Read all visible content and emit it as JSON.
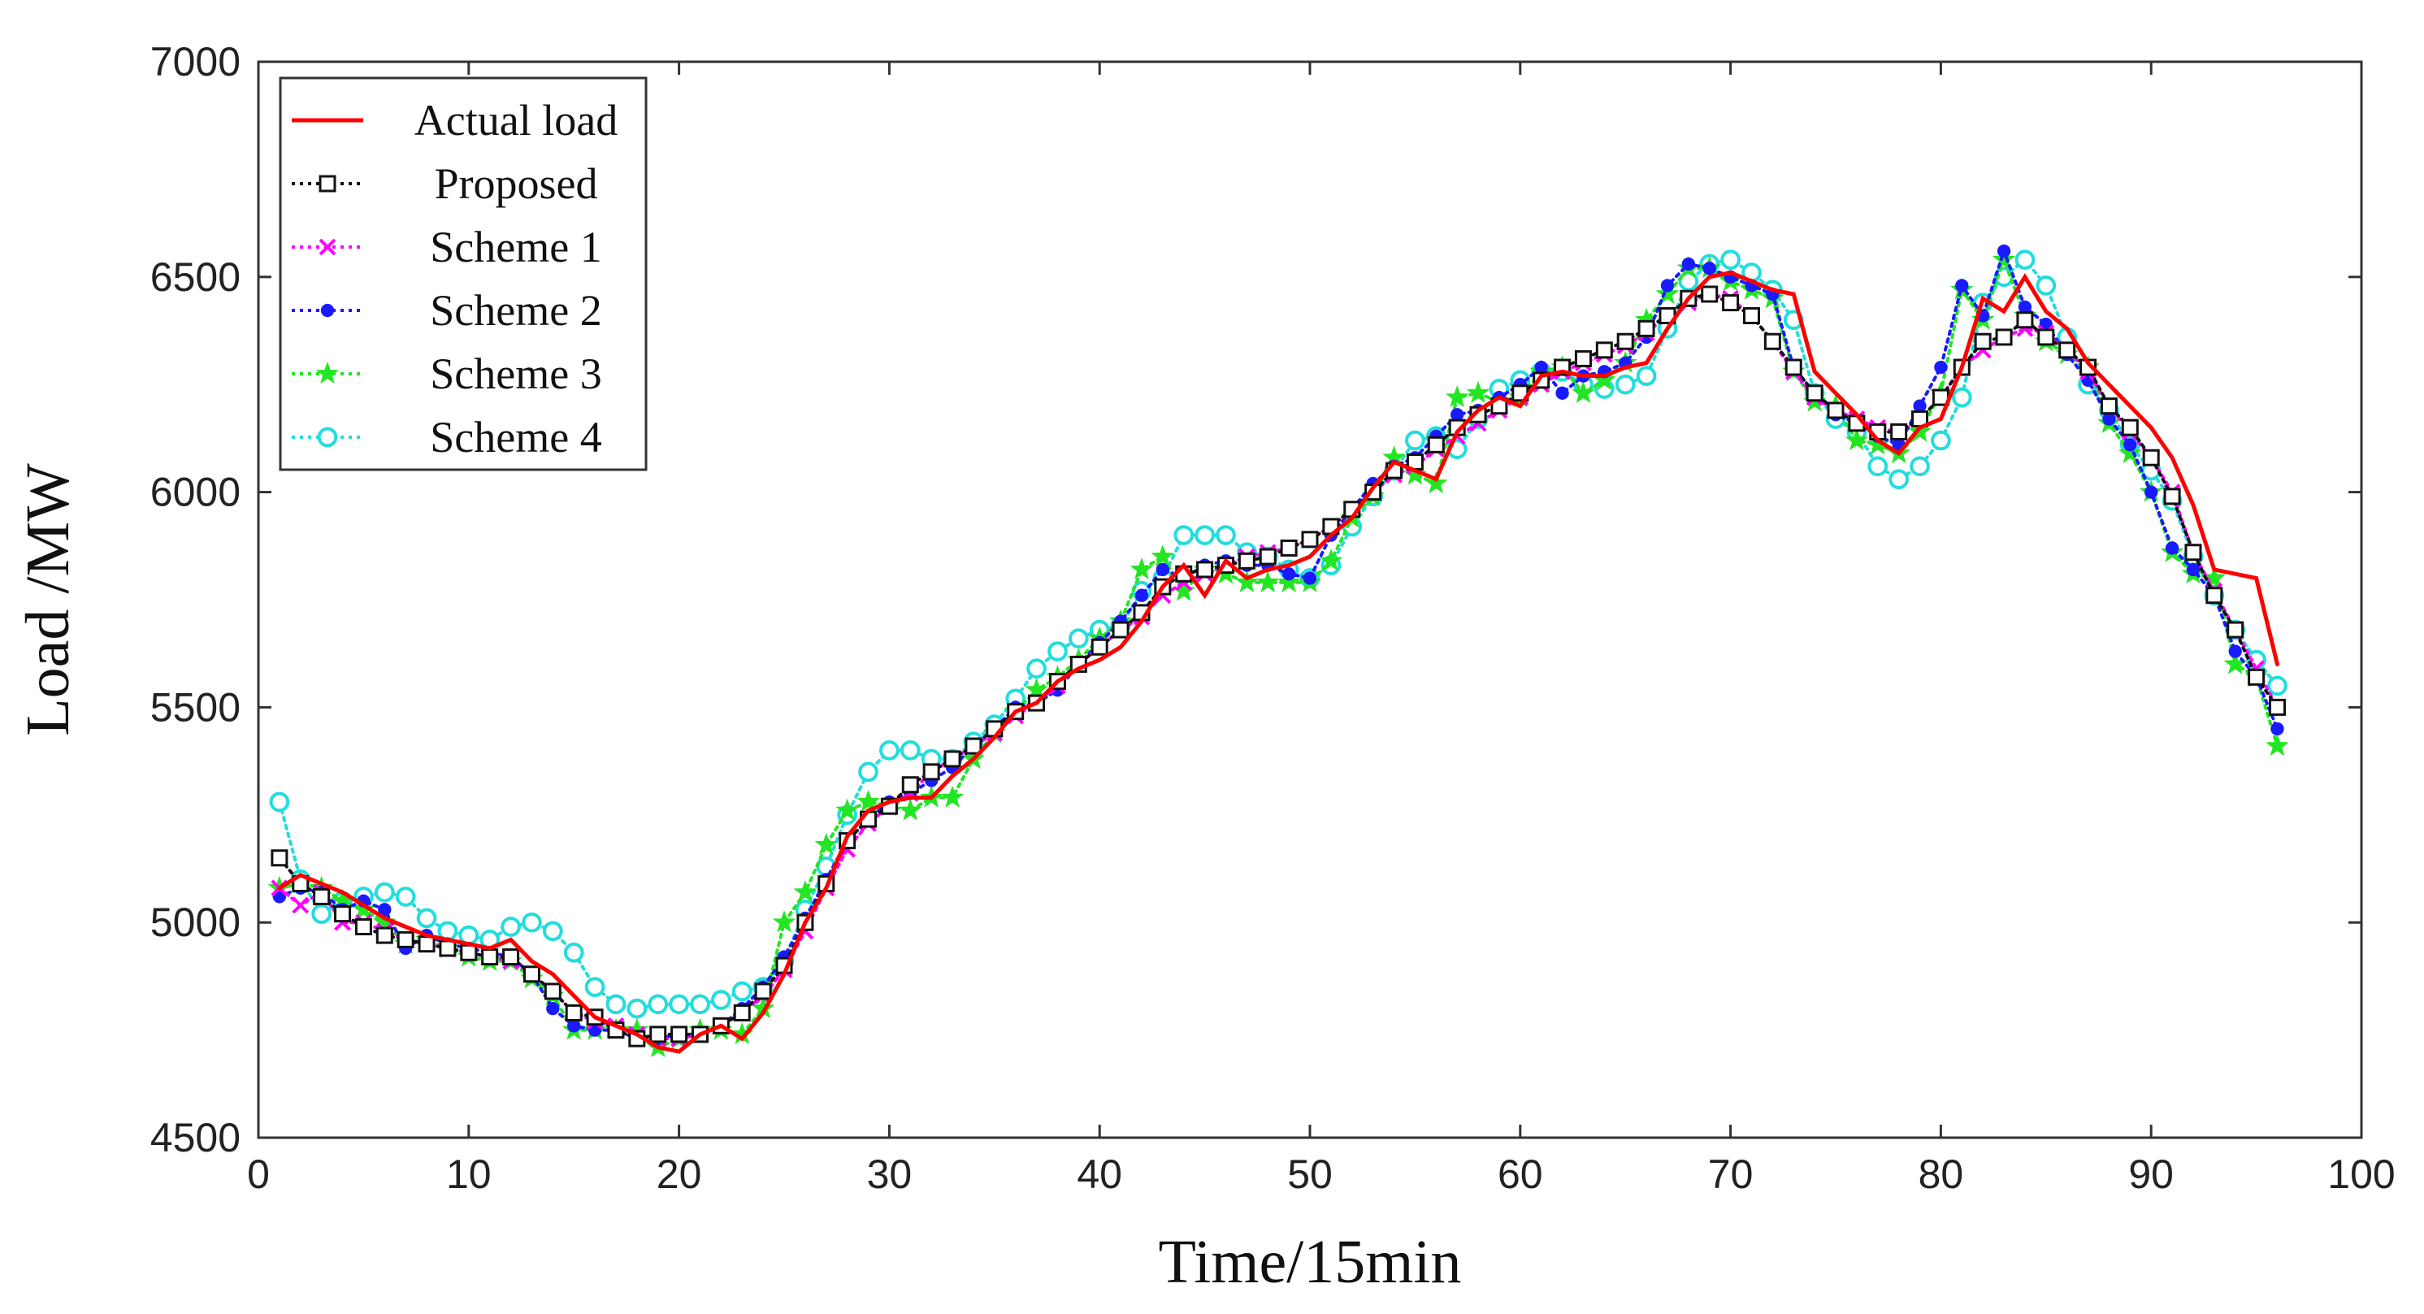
{
  "chart_data": {
    "type": "line",
    "title": "",
    "xlabel": "Time/15min",
    "ylabel": "Load /MW",
    "xlim": [
      0,
      100
    ],
    "ylim": [
      4500,
      7000
    ],
    "xticks": [
      0,
      10,
      20,
      30,
      40,
      50,
      60,
      70,
      80,
      90,
      100
    ],
    "yticks": [
      4500,
      5000,
      5500,
      6000,
      6500,
      7000
    ],
    "legend_position": "top-left",
    "grid": false,
    "x_start": 1,
    "series": [
      {
        "name": "Actual load",
        "color": "#ff0000",
        "style": "solid",
        "marker": "none",
        "values": [
          5080,
          5110,
          5090,
          5070,
          5040,
          5010,
          4990,
          4970,
          4960,
          4950,
          4940,
          4960,
          4910,
          4880,
          4830,
          4780,
          4760,
          4740,
          4710,
          4700,
          4740,
          4760,
          4730,
          4790,
          4880,
          5000,
          5080,
          5200,
          5260,
          5280,
          5290,
          5290,
          5340,
          5380,
          5430,
          5490,
          5510,
          5560,
          5590,
          5610,
          5640,
          5700,
          5780,
          5830,
          5760,
          5840,
          5800,
          5820,
          5830,
          5850,
          5900,
          5940,
          6010,
          6070,
          6050,
          6030,
          6140,
          6190,
          6220,
          6200,
          6270,
          6280,
          6270,
          6270,
          6290,
          6300,
          6380,
          6450,
          6500,
          6510,
          6490,
          6470,
          6460,
          6280,
          6230,
          6180,
          6120,
          6090,
          6150,
          6170,
          6290,
          6450,
          6420,
          6500,
          6420,
          6380,
          6300,
          6250,
          6200,
          6150,
          6080,
          5970,
          5820,
          5810,
          5800,
          5600
        ]
      },
      {
        "name": "Proposed",
        "color": "#111111",
        "style": "dotted",
        "marker": "square",
        "values": [
          5150,
          5090,
          5060,
          5020,
          4990,
          4970,
          4960,
          4950,
          4940,
          4930,
          4920,
          4920,
          4880,
          4840,
          4790,
          4780,
          4750,
          4730,
          4740,
          4740,
          4740,
          4760,
          4790,
          4840,
          4900,
          5000,
          5090,
          5190,
          5240,
          5270,
          5320,
          5350,
          5380,
          5410,
          5450,
          5490,
          5510,
          5560,
          5600,
          5640,
          5680,
          5720,
          5780,
          5810,
          5820,
          5830,
          5840,
          5850,
          5870,
          5890,
          5920,
          5960,
          6000,
          6050,
          6070,
          6110,
          6150,
          6180,
          6200,
          6230,
          6260,
          6290,
          6310,
          6330,
          6350,
          6380,
          6410,
          6450,
          6460,
          6440,
          6410,
          6350,
          6290,
          6230,
          6190,
          6160,
          6140,
          6140,
          6170,
          6220,
          6290,
          6350,
          6360,
          6400,
          6360,
          6330,
          6290,
          6200,
          6150,
          6080,
          5990,
          5860,
          5760,
          5680,
          5570,
          5500
        ]
      },
      {
        "name": "Scheme 1",
        "color": "#ff00ff",
        "style": "dotted",
        "marker": "x",
        "values": [
          5080,
          5040,
          5070,
          5000,
          5000,
          4980,
          4960,
          4950,
          4940,
          4930,
          4920,
          4910,
          4880,
          4840,
          4790,
          4770,
          4760,
          4740,
          4730,
          4730,
          4740,
          4760,
          4790,
          4830,
          4890,
          4980,
          5080,
          5170,
          5230,
          5270,
          5300,
          5350,
          5380,
          5410,
          5440,
          5480,
          5510,
          5550,
          5600,
          5640,
          5680,
          5710,
          5760,
          5790,
          5810,
          5830,
          5850,
          5860,
          5870,
          5890,
          5920,
          5960,
          6000,
          6040,
          6060,
          6100,
          6130,
          6160,
          6190,
          6220,
          6250,
          6280,
          6300,
          6320,
          6340,
          6370,
          6410,
          6440,
          6460,
          6450,
          6410,
          6350,
          6280,
          6220,
          6190,
          6170,
          6150,
          6140,
          6170,
          6220,
          6290,
          6330,
          6360,
          6380,
          6370,
          6330,
          6280,
          6200,
          6140,
          6080,
          6000,
          5860,
          5770,
          5680,
          5590,
          5500
        ]
      },
      {
        "name": "Scheme 2",
        "color": "#1a1aff",
        "style": "dotted",
        "marker": "dot",
        "values": [
          5060,
          5080,
          5070,
          5030,
          5050,
          5030,
          4940,
          4970,
          4950,
          4940,
          4930,
          4920,
          4880,
          4800,
          4760,
          4750,
          4750,
          4730,
          4730,
          4740,
          4740,
          4760,
          4800,
          4850,
          4920,
          5010,
          5100,
          5190,
          5240,
          5280,
          5300,
          5330,
          5360,
          5410,
          5450,
          5500,
          5510,
          5540,
          5600,
          5650,
          5700,
          5760,
          5820,
          5800,
          5830,
          5840,
          5830,
          5830,
          5810,
          5800,
          5900,
          5960,
          6020,
          6060,
          6080,
          6130,
          6180,
          6190,
          6220,
          6250,
          6290,
          6230,
          6270,
          6280,
          6300,
          6360,
          6480,
          6530,
          6520,
          6500,
          6480,
          6460,
          6290,
          6230,
          6180,
          6160,
          6130,
          6110,
          6200,
          6290,
          6480,
          6410,
          6560,
          6430,
          6390,
          6320,
          6260,
          6170,
          6110,
          6000,
          5870,
          5820,
          5760,
          5630,
          5570,
          5450
        ]
      },
      {
        "name": "Scheme 3",
        "color": "#22e622",
        "style": "dotted",
        "marker": "star",
        "values": [
          5080,
          5090,
          5080,
          5050,
          5030,
          5000,
          4950,
          4960,
          4940,
          4920,
          4910,
          4910,
          4870,
          4830,
          4750,
          4750,
          4750,
          4750,
          4710,
          4730,
          4750,
          4750,
          4740,
          4800,
          5000,
          5070,
          5180,
          5260,
          5280,
          5270,
          5260,
          5290,
          5290,
          5380,
          5440,
          5490,
          5540,
          5570,
          5610,
          5660,
          5700,
          5820,
          5850,
          5770,
          5820,
          5810,
          5790,
          5790,
          5790,
          5790,
          5840,
          5940,
          5990,
          6080,
          6040,
          6020,
          6220,
          6230,
          6210,
          6220,
          6280,
          6290,
          6230,
          6260,
          6300,
          6400,
          6460,
          6520,
          6520,
          6490,
          6470,
          6450,
          6280,
          6210,
          6200,
          6120,
          6110,
          6090,
          6140,
          6230,
          6470,
          6400,
          6540,
          6410,
          6350,
          6320,
          6290,
          6160,
          6090,
          6000,
          5860,
          5810,
          5800,
          5600,
          5570,
          5410
        ]
      },
      {
        "name": "Scheme 4",
        "color": "#22dddd",
        "style": "dotted",
        "marker": "circle",
        "values": [
          5280,
          5100,
          5020,
          5050,
          5060,
          5070,
          5060,
          5010,
          4980,
          4970,
          4960,
          4990,
          5000,
          4980,
          4930,
          4850,
          4810,
          4800,
          4810,
          4810,
          4810,
          4820,
          4840,
          4850,
          4910,
          5030,
          5130,
          5250,
          5350,
          5400,
          5400,
          5380,
          5380,
          5420,
          5460,
          5520,
          5590,
          5630,
          5660,
          5680,
          5690,
          5770,
          5800,
          5900,
          5900,
          5900,
          5860,
          5850,
          5820,
          5800,
          5830,
          5920,
          5990,
          6050,
          6120,
          6130,
          6100,
          6170,
          6240,
          6260,
          6280,
          6280,
          6250,
          6240,
          6250,
          6270,
          6380,
          6490,
          6530,
          6540,
          6510,
          6470,
          6400,
          6230,
          6170,
          6140,
          6060,
          6030,
          6060,
          6120,
          6220,
          6440,
          6500,
          6540,
          6480,
          6360,
          6250,
          6190,
          6110,
          6050,
          5980,
          5850,
          5760,
          5680,
          5610,
          5550
        ]
      }
    ]
  }
}
